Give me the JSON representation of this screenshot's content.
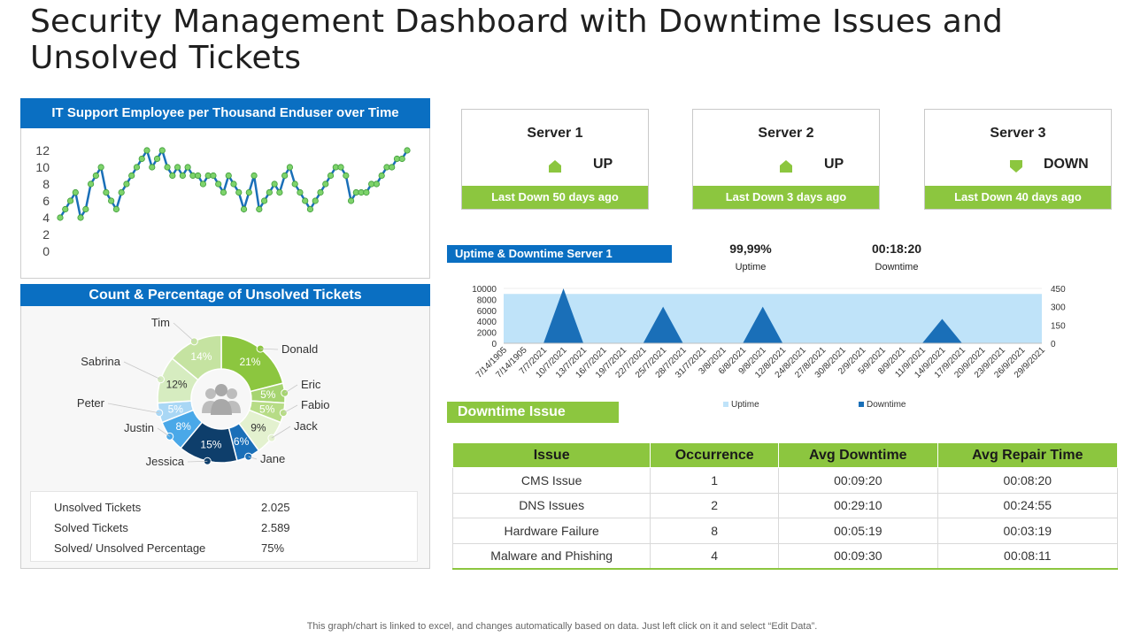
{
  "title": "Security Management Dashboard with Downtime Issues and Unsolved Tickets",
  "line_panel": {
    "header": "IT Support Employee per Thousand Enduser over Time"
  },
  "tickets_panel": {
    "header": "Count & Percentage of Unsolved Tickets",
    "stats": [
      {
        "label": "Unsolved  Tickets",
        "value": "2.025"
      },
      {
        "label": "Solved Tickets",
        "value": "2.589"
      },
      {
        "label": "Solved/ Unsolved  Percentage",
        "value": "75%"
      }
    ]
  },
  "servers": [
    {
      "name": "Server 1",
      "status": "UP",
      "icon": "up-arrow-icon",
      "footer": "Last Down 50 days ago"
    },
    {
      "name": "Server 2",
      "status": "UP",
      "icon": "up-arrow-icon",
      "footer": "Last Down 3 days ago"
    },
    {
      "name": "Server 3",
      "status": "DOWN",
      "icon": "down-arrow-icon",
      "footer": "Last Down 40 days ago"
    }
  ],
  "uptime": {
    "header": "Uptime & Downtime Server 1",
    "uptime_value": "99,99%",
    "uptime_label": "Uptime",
    "downtime_value": "00:18:20",
    "downtime_label": "Downtime"
  },
  "downtime_issue": {
    "header": "Downtime Issue",
    "columns": [
      "Issue",
      "Occurrence",
      "Avg Downtime",
      "Avg Repair Time"
    ],
    "rows": [
      [
        "CMS Issue",
        "1",
        "00:09:20",
        "00:08:20"
      ],
      [
        "DNS Issues",
        "2",
        "00:29:10",
        "00:24:55"
      ],
      [
        "Hardware Failure",
        "8",
        "00:05:19",
        "00:03:19"
      ],
      [
        "Malware and Phishing",
        "4",
        "00:09:30",
        "00:08:11"
      ]
    ]
  },
  "footnote": "This graph/chart is linked to excel,  and changes automatically based on data. Just left click on it and select “Edit Data”.",
  "colors": {
    "blue": "#0a6fc2",
    "green": "#8cc63f",
    "light_blue": "#bfe3f9",
    "line": "#1a6fb8",
    "marker": "#7ed36b"
  },
  "chart_data": [
    {
      "type": "line",
      "y_ticks": [
        "0",
        "2",
        "4",
        "6",
        "8",
        "10",
        "12"
      ],
      "ylim": [
        0,
        12
      ],
      "values": [
        4,
        5,
        6,
        7,
        4,
        5,
        8,
        9,
        10,
        7,
        6,
        5,
        7,
        8,
        9,
        10,
        11,
        12,
        10,
        11,
        12,
        10,
        9,
        10,
        9,
        10,
        9,
        9,
        8,
        9,
        9,
        8,
        7,
        9,
        8,
        7,
        5,
        7,
        9,
        5,
        6,
        7,
        8,
        7,
        9,
        10,
        8,
        7,
        6,
        5,
        6,
        7,
        8,
        9,
        10,
        10,
        9,
        6,
        7,
        7,
        7,
        8,
        8,
        9,
        10,
        10,
        11,
        11,
        12
      ]
    },
    {
      "type": "pie",
      "labels": [
        "Donald",
        "Eric",
        "Fabio",
        "Jack",
        "Jane",
        "Jessica",
        "Justin",
        "Peter",
        "Sabrina",
        "Tim"
      ],
      "slice_labels": [
        "21%",
        "5%",
        "5%",
        "9%",
        "6%",
        "15%",
        "8%",
        "5%",
        "12%",
        "14%"
      ],
      "values": [
        21,
        5,
        5,
        9,
        6,
        15,
        8,
        5,
        12,
        14
      ],
      "colors": [
        "#8cc63f",
        "#a6d470",
        "#b7dc86",
        "#e3f1cf",
        "#1a6fb8",
        "#0e3e6b",
        "#4aa8e8",
        "#a9d7f5",
        "#d6ecc0",
        "#c5e3a1"
      ]
    },
    {
      "type": "area",
      "categories": [
        "7/14/1905",
        "7/14/1905",
        "7/7/2021",
        "10/7/2021",
        "13/7/2021",
        "16/7/2021",
        "19/7/2021",
        "22/7/2021",
        "25/7/2021",
        "28/7/2021",
        "31/7/2021",
        "3/8/2021",
        "6/8/2021",
        "9/8/2021",
        "12/8/2021",
        "24/8/2021",
        "27/8/2021",
        "30/8/2021",
        "2/9/2021",
        "5/9/2021",
        "8/9/2021",
        "11/9/2021",
        "14/9/2021",
        "17/9/2021",
        "20/9/2021",
        "23/9/2021",
        "26/9/2021",
        "29/9/2021"
      ],
      "y_ticks_left": [
        "0",
        "2000",
        "4000",
        "6000",
        "8000",
        "10000"
      ],
      "y_ticks_right": [
        "0",
        "150",
        "300",
        "450"
      ],
      "ylim_left": [
        0,
        10000
      ],
      "ylim_right": [
        0,
        450
      ],
      "series": [
        {
          "name": "Uptime",
          "axis": "left",
          "values": [
            9000,
            9000,
            9000,
            9000,
            9000,
            9000,
            9000,
            9000,
            9000,
            9000,
            9000,
            9000,
            9000,
            9000,
            9000,
            9000,
            9000,
            9000,
            9000,
            9000,
            9000,
            9000,
            9000,
            9000,
            9000,
            9000,
            9000,
            9000
          ]
        },
        {
          "name": "Downtime",
          "axis": "right",
          "values": [
            0,
            0,
            0,
            450,
            0,
            0,
            0,
            0,
            300,
            0,
            0,
            0,
            0,
            300,
            0,
            0,
            0,
            0,
            0,
            0,
            0,
            0,
            200,
            0,
            0,
            0,
            0,
            0
          ]
        }
      ]
    }
  ]
}
